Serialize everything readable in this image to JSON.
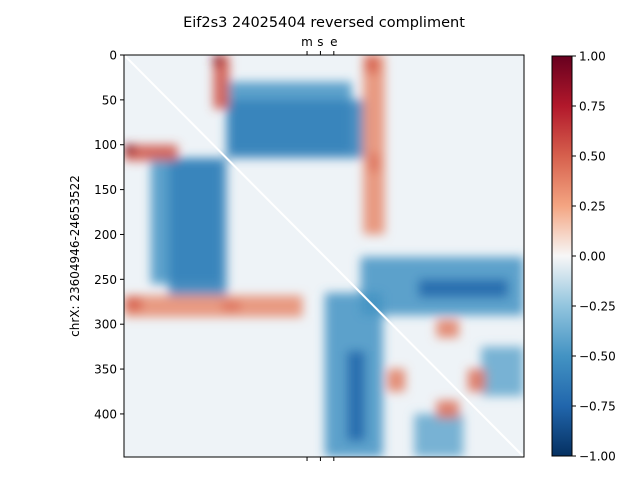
{
  "chart_data": {
    "type": "heatmap",
    "title": "Eif2s3 24025404 reversed compliment",
    "ylabel": "chrX: 23604946-24653522",
    "xlabel": "",
    "matrix_size": 448,
    "y_ticks": [
      0,
      50,
      100,
      150,
      200,
      250,
      300,
      350,
      400
    ],
    "top_ticks": [
      {
        "label": "m",
        "value": 205
      },
      {
        "label": "s",
        "value": 220
      },
      {
        "label": "e",
        "value": 235
      }
    ],
    "colorbar": {
      "min": -1.0,
      "max": 1.0,
      "ticks": [
        "1.00",
        "0.75",
        "0.50",
        "0.25",
        "0.00",
        "−0.25",
        "−0.50",
        "−0.75",
        "−1.00"
      ],
      "colormap": "RdBu_r"
    },
    "diagonal": "white line from (0,0) to (448,448)",
    "regions": [
      {
        "x": [
          115,
          255
        ],
        "y": [
          30,
          110
        ],
        "value": -0.5
      },
      {
        "x": [
          30,
          110
        ],
        "y": [
          115,
          255
        ],
        "value": -0.5
      },
      {
        "x": [
          50,
          115
        ],
        "y": [
          115,
          270
        ],
        "value": -0.6
      },
      {
        "x": [
          115,
          270
        ],
        "y": [
          50,
          115
        ],
        "value": -0.6
      },
      {
        "x": [
          265,
          448
        ],
        "y": [
          225,
          290
        ],
        "value": -0.5
      },
      {
        "x": [
          225,
          290
        ],
        "y": [
          265,
          448
        ],
        "value": -0.5
      },
      {
        "x": [
          250,
          270
        ],
        "y": [
          330,
          430
        ],
        "value": -0.75
      },
      {
        "x": [
          330,
          430
        ],
        "y": [
          250,
          270
        ],
        "value": -0.75
      },
      {
        "x": [
          400,
          448
        ],
        "y": [
          325,
          380
        ],
        "value": -0.4
      },
      {
        "x": [
          325,
          380
        ],
        "y": [
          400,
          448
        ],
        "value": -0.4
      },
      {
        "x": [
          0,
          60
        ],
        "y": [
          100,
          118
        ],
        "value": 0.55
      },
      {
        "x": [
          100,
          118
        ],
        "y": [
          0,
          60
        ],
        "value": 0.55
      },
      {
        "x": [
          0,
          200
        ],
        "y": [
          268,
          292
        ],
        "value": 0.35
      },
      {
        "x": [
          268,
          292
        ],
        "y": [
          0,
          200
        ],
        "value": 0.35
      },
      {
        "x": [
          100,
          110
        ],
        "y": [
          0,
          12
        ],
        "value": 0.9
      },
      {
        "x": [
          0,
          12
        ],
        "y": [
          100,
          110
        ],
        "value": 0.9
      },
      {
        "x": [
          270,
          285
        ],
        "y": [
          0,
          20
        ],
        "value": 0.5
      },
      {
        "x": [
          0,
          20
        ],
        "y": [
          270,
          285
        ],
        "value": 0.5
      },
      {
        "x": [
          275,
          285
        ],
        "y": [
          110,
          130
        ],
        "value": 0.45
      },
      {
        "x": [
          110,
          130
        ],
        "y": [
          275,
          285
        ],
        "value": 0.45
      },
      {
        "x": [
          350,
          375
        ],
        "y": [
          295,
          315
        ],
        "value": 0.4
      },
      {
        "x": [
          295,
          315
        ],
        "y": [
          350,
          375
        ],
        "value": 0.4
      },
      {
        "x": [
          385,
          405
        ],
        "y": [
          350,
          375
        ],
        "value": 0.45
      },
      {
        "x": [
          350,
          375
        ],
        "y": [
          385,
          405
        ],
        "value": 0.45
      }
    ]
  }
}
